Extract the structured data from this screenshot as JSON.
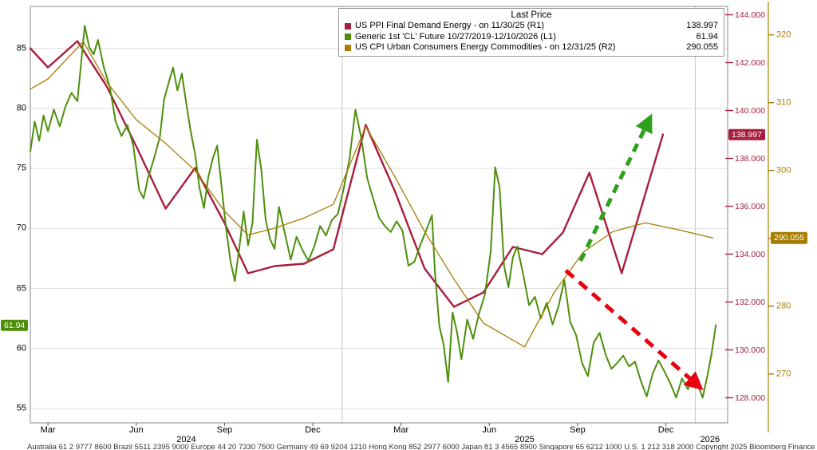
{
  "chart_data": {
    "type": "line",
    "title": "Last Price",
    "series": [
      {
        "sid": "ppi",
        "name": "US PPI Final Demand Energy",
        "label": "US PPI Final Demand Energy -  on 11/30/25  (R1)",
        "last_price": "138.997",
        "axis": "R1",
        "color": "#a81e3d",
        "width": 2.4,
        "points": [
          [
            1.4,
            142.6
          ],
          [
            2,
            141.8
          ],
          [
            3,
            142.9
          ],
          [
            4,
            141.0
          ],
          [
            5,
            138.5
          ],
          [
            6,
            135.9
          ],
          [
            7,
            137.6
          ],
          [
            8,
            135.3
          ],
          [
            8.8,
            133.2
          ],
          [
            9.7,
            133.5
          ],
          [
            10.7,
            133.6
          ],
          [
            11.7,
            134.2
          ],
          [
            12.8,
            139.4
          ],
          [
            13.8,
            136.6
          ],
          [
            14.8,
            133.4
          ],
          [
            15.8,
            131.8
          ],
          [
            16.8,
            132.4
          ],
          [
            17.8,
            134.3
          ],
          [
            18.8,
            134.0
          ],
          [
            19.5,
            134.9
          ],
          [
            20.4,
            137.4
          ],
          [
            21.5,
            133.2
          ],
          [
            22.9,
            138.997
          ]
        ]
      },
      {
        "sid": "cl-future",
        "name": "Generic 1st 'CL' Future",
        "label": "Generic 1st 'CL' Future 10/27/2019-12/10/2026  (L1)",
        "last_price": "61.94",
        "axis": "L1",
        "color": "#4d8f0b",
        "width": 2,
        "points": [
          [
            1.4,
            76.4
          ],
          [
            1.55,
            78.9
          ],
          [
            1.7,
            77.3
          ],
          [
            1.85,
            79.4
          ],
          [
            2.0,
            78.1
          ],
          [
            2.2,
            79.9
          ],
          [
            2.4,
            78.5
          ],
          [
            2.6,
            80.2
          ],
          [
            2.8,
            81.3
          ],
          [
            3.0,
            80.6
          ],
          [
            3.1,
            83.1
          ],
          [
            3.25,
            86.9
          ],
          [
            3.4,
            85.1
          ],
          [
            3.55,
            84.5
          ],
          [
            3.7,
            85.7
          ],
          [
            3.9,
            83.4
          ],
          [
            4.1,
            81.8
          ],
          [
            4.3,
            78.9
          ],
          [
            4.5,
            77.7
          ],
          [
            4.7,
            78.6
          ],
          [
            4.9,
            76.9
          ],
          [
            5.1,
            73.2
          ],
          [
            5.25,
            72.5
          ],
          [
            5.4,
            74.2
          ],
          [
            5.6,
            75.8
          ],
          [
            5.8,
            77.6
          ],
          [
            5.95,
            80.8
          ],
          [
            6.1,
            82.1
          ],
          [
            6.25,
            83.4
          ],
          [
            6.4,
            81.5
          ],
          [
            6.55,
            82.9
          ],
          [
            6.7,
            80.4
          ],
          [
            6.85,
            78.1
          ],
          [
            7.0,
            76.2
          ],
          [
            7.15,
            73.4
          ],
          [
            7.3,
            71.7
          ],
          [
            7.45,
            74.3
          ],
          [
            7.6,
            75.8
          ],
          [
            7.75,
            76.9
          ],
          [
            7.9,
            73.5
          ],
          [
            8.05,
            70.1
          ],
          [
            8.2,
            67.3
          ],
          [
            8.35,
            65.6
          ],
          [
            8.5,
            68.3
          ],
          [
            8.65,
            71.4
          ],
          [
            8.8,
            68.6
          ],
          [
            8.95,
            70.4
          ],
          [
            9.1,
            77.4
          ],
          [
            9.25,
            74.9
          ],
          [
            9.4,
            70.7
          ],
          [
            9.55,
            69.1
          ],
          [
            9.7,
            68.3
          ],
          [
            9.85,
            71.8
          ],
          [
            10.05,
            69.6
          ],
          [
            10.25,
            67.4
          ],
          [
            10.45,
            69.3
          ],
          [
            10.65,
            68.2
          ],
          [
            10.85,
            67.3
          ],
          [
            11.05,
            68.5
          ],
          [
            11.25,
            70.2
          ],
          [
            11.45,
            69.4
          ],
          [
            11.65,
            70.7
          ],
          [
            11.85,
            71.2
          ],
          [
            12.05,
            73.3
          ],
          [
            12.25,
            75.8
          ],
          [
            12.45,
            79.9
          ],
          [
            12.65,
            77.5
          ],
          [
            12.85,
            74.2
          ],
          [
            13.05,
            72.5
          ],
          [
            13.25,
            70.9
          ],
          [
            13.45,
            70.2
          ],
          [
            13.65,
            69.7
          ],
          [
            13.85,
            70.6
          ],
          [
            14.05,
            69.8
          ],
          [
            14.25,
            66.9
          ],
          [
            14.45,
            67.2
          ],
          [
            14.65,
            68.6
          ],
          [
            14.85,
            69.8
          ],
          [
            15.05,
            71.1
          ],
          [
            15.15,
            66.4
          ],
          [
            15.3,
            61.9
          ],
          [
            15.45,
            60.3
          ],
          [
            15.6,
            57.2
          ],
          [
            15.75,
            63.0
          ],
          [
            15.9,
            61.4
          ],
          [
            16.05,
            59.1
          ],
          [
            16.25,
            62.4
          ],
          [
            16.45,
            60.8
          ],
          [
            16.65,
            62.9
          ],
          [
            16.85,
            64.5
          ],
          [
            17.05,
            68.1
          ],
          [
            17.2,
            75.1
          ],
          [
            17.35,
            73.4
          ],
          [
            17.5,
            66.9
          ],
          [
            17.65,
            65.1
          ],
          [
            17.8,
            67.6
          ],
          [
            17.95,
            68.5
          ],
          [
            18.15,
            66.2
          ],
          [
            18.35,
            63.6
          ],
          [
            18.55,
            64.3
          ],
          [
            18.75,
            62.5
          ],
          [
            18.95,
            63.8
          ],
          [
            19.15,
            62.0
          ],
          [
            19.35,
            63.5
          ],
          [
            19.55,
            65.7
          ],
          [
            19.75,
            62.2
          ],
          [
            19.95,
            61.1
          ],
          [
            20.15,
            58.8
          ],
          [
            20.35,
            57.7
          ],
          [
            20.55,
            60.5
          ],
          [
            20.75,
            61.3
          ],
          [
            20.95,
            59.5
          ],
          [
            21.15,
            58.3
          ],
          [
            21.35,
            58.8
          ],
          [
            21.55,
            59.4
          ],
          [
            21.75,
            58.5
          ],
          [
            21.95,
            58.9
          ],
          [
            22.15,
            57.3
          ],
          [
            22.35,
            56.0
          ],
          [
            22.55,
            57.9
          ],
          [
            22.75,
            59.0
          ],
          [
            22.95,
            58.1
          ],
          [
            23.15,
            57.1
          ],
          [
            23.35,
            55.9
          ],
          [
            23.55,
            57.5
          ],
          [
            23.75,
            56.6
          ],
          [
            23.95,
            57.8
          ],
          [
            24.1,
            56.9
          ],
          [
            24.25,
            55.9
          ],
          [
            24.4,
            57.6
          ],
          [
            24.55,
            59.5
          ],
          [
            24.7,
            61.94
          ]
        ]
      },
      {
        "sid": "cpi",
        "name": "US CPI Urban Consumers Energy Commodities",
        "label": "US CPI Urban Consumers Energy Commodities -  on 12/31/25  (R2)",
        "last_price": "290.055",
        "axis": "R2",
        "color": "#a87c00",
        "width": 1.3,
        "points": [
          [
            1.4,
            312
          ],
          [
            2,
            313.5
          ],
          [
            3.2,
            319
          ],
          [
            4,
            313
          ],
          [
            5,
            307.5
          ],
          [
            6,
            304
          ],
          [
            7,
            300
          ],
          [
            8,
            294
          ],
          [
            8.8,
            290.5
          ],
          [
            9.7,
            291.5
          ],
          [
            10.7,
            293
          ],
          [
            11.7,
            295
          ],
          [
            12.8,
            306.5
          ],
          [
            13.8,
            299
          ],
          [
            14.8,
            291
          ],
          [
            15.8,
            284
          ],
          [
            16.8,
            277.5
          ],
          [
            18.2,
            274
          ],
          [
            19.2,
            282
          ],
          [
            20.2,
            288
          ],
          [
            21.2,
            291
          ],
          [
            22.3,
            292.3
          ],
          [
            23.4,
            291.3
          ],
          [
            24.6,
            290.055
          ]
        ]
      }
    ],
    "axes": {
      "L1": {
        "min": 53.8,
        "max": 88.5,
        "ticks": [
          55,
          60,
          65,
          70,
          75,
          80,
          85
        ],
        "side": "left",
        "color": "#000000"
      },
      "R1": {
        "min": 126.95,
        "max": 144.35,
        "ticks": [
          128,
          130,
          132,
          134,
          136,
          138,
          140,
          142,
          144
        ],
        "decimals": 3,
        "side": "right",
        "color": "#a81e3d"
      },
      "R2": {
        "min": 262.8,
        "max": 324.2,
        "ticks": [
          270,
          280,
          290,
          300,
          310,
          320
        ],
        "side": "far-right",
        "color": "#a87c00"
      }
    },
    "x_axis": {
      "unit": "months since Jan 2024",
      "range": [
        1.4,
        25.1
      ],
      "month_ticks": [
        {
          "m": 2,
          "label": "Mar"
        },
        {
          "m": 5,
          "label": "Jun"
        },
        {
          "m": 8,
          "label": "Sep"
        },
        {
          "m": 11,
          "label": "Dec"
        },
        {
          "m": 14,
          "label": "Mar"
        },
        {
          "m": 17,
          "label": "Jun"
        },
        {
          "m": 20,
          "label": "Sep"
        },
        {
          "m": 23,
          "label": "Dec"
        }
      ],
      "year_labels": [
        {
          "m": 6.7,
          "label": "2024"
        },
        {
          "m": 18.2,
          "label": "2025"
        },
        {
          "m": 24.5,
          "label": "2026"
        }
      ],
      "year_separators": [
        12,
        24
      ]
    },
    "annotations": [
      {
        "name": "trend-arrow-up",
        "type": "arrow",
        "color": "#2fa01d",
        "axis": "L1",
        "from": [
          20.1,
          67.3
        ],
        "to": [
          22.4,
          78.9
        ],
        "dash": "11 8",
        "width": 5
      },
      {
        "name": "trend-arrow-down",
        "type": "arrow",
        "color": "#e8000d",
        "axis": "L1",
        "from": [
          19.6,
          66.5
        ],
        "to": [
          24.05,
          57.0
        ],
        "dash": "13 9",
        "width": 5
      }
    ],
    "badges": [
      {
        "text": "61.94",
        "axis": "L1",
        "value": 61.94,
        "color": "#4d8f0b",
        "side": "left"
      },
      {
        "text": "138.997",
        "axis": "R1",
        "value": 138.997,
        "color": "#a81e3d",
        "side": "right"
      },
      {
        "text": "290.055",
        "axis": "R2",
        "value": 290.055,
        "color": "#a87c00",
        "side": "far-right"
      }
    ],
    "grid": {
      "horizontal": true,
      "vertical_year_lines": true,
      "color": "#dedede"
    }
  },
  "footer": {
    "text": "Australia 61 2 9777 8600 Brazil 5511 2395 9000 Europe 44 20 7330 7500 Germany 49 69 9204 1210 Hong Kong 852 2977 6000 Japan 81 3 4565 8900 Singapore 65 6212 1000 U.S. 1 212 318 2000 Copyright 2025 Bloomberg Finance L.P."
  }
}
